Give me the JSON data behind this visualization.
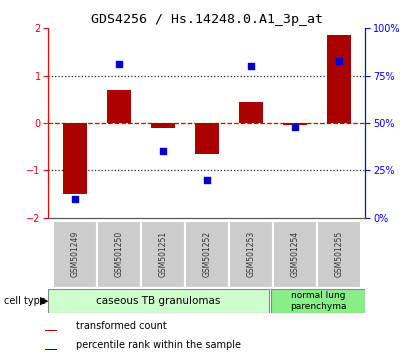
{
  "title": "GDS4256 / Hs.14248.0.A1_3p_at",
  "samples": [
    "GSM501249",
    "GSM501250",
    "GSM501251",
    "GSM501252",
    "GSM501253",
    "GSM501254",
    "GSM501255"
  ],
  "transformed_count": [
    -1.5,
    0.7,
    -0.1,
    -0.65,
    0.45,
    -0.05,
    1.85
  ],
  "percentile_rank": [
    10,
    81,
    35,
    20,
    80,
    48,
    83
  ],
  "ylim_left": [
    -2,
    2
  ],
  "ylim_right": [
    0,
    100
  ],
  "yticks_left": [
    -2,
    -1,
    0,
    1,
    2
  ],
  "yticks_right": [
    0,
    25,
    50,
    75,
    100
  ],
  "yticklabels_right": [
    "0%",
    "25%",
    "50%",
    "75%",
    "100%"
  ],
  "bar_color": "#aa0000",
  "dot_color": "#0000cc",
  "hline_color": "#cc0000",
  "dotted_color": "#222222",
  "group1_label": "caseous TB granulomas",
  "group2_label": "normal lung\nparenchyma",
  "group1_count": 5,
  "group2_count": 2,
  "cell_type_label": "cell type",
  "legend1": "transformed count",
  "legend2": "percentile rank within the sample",
  "group1_color": "#ccffcc",
  "group2_color": "#88ee88",
  "sample_box_color": "#cccccc",
  "bar_width": 0.55
}
